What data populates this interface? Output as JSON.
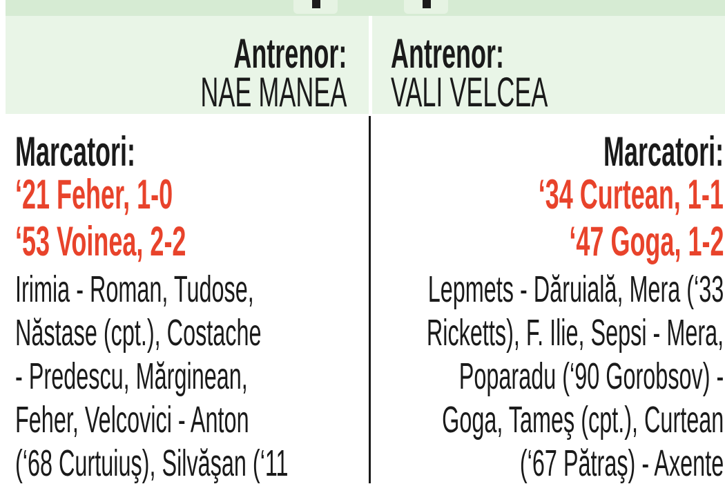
{
  "home": {
    "coach_label": "Antrenor:",
    "coach_name": "NAE MANEA",
    "scorers_label": "Marcatori:",
    "scorers": [
      "‘21 Feher, 1-0",
      "‘53 Voinea, 2-2"
    ],
    "lineup_lines": [
      "Irimia - Roman, Tudose,",
      "Năstase (cpt.), Costache",
      "- Predescu, Mărginean,",
      "Feher, Velcovici - Anton",
      "(‘68 Curtuiuş), Silvăşan (‘11"
    ]
  },
  "away": {
    "coach_label": "Antrenor:",
    "coach_name": "VALI VELCEA",
    "scorers_label": "Marcatori:",
    "scorers": [
      "‘34 Curtean, 1-1",
      "‘47 Goga, 1-2"
    ],
    "lineup_lines": [
      "Lepmets - Dăruială, Mera (‘33",
      "Ricketts), F. Ilie, Sepsi - Mera,",
      "Poparadu (‘90 Gorobsov) -",
      "Goga, Tameş (cpt.), Curtean",
      "(‘67 Pătraş) - Axente"
    ]
  },
  "colors": {
    "scorer_red": "#e8432b",
    "band_green": "#d6ebd3",
    "coach_green": "#e9f5e7"
  }
}
